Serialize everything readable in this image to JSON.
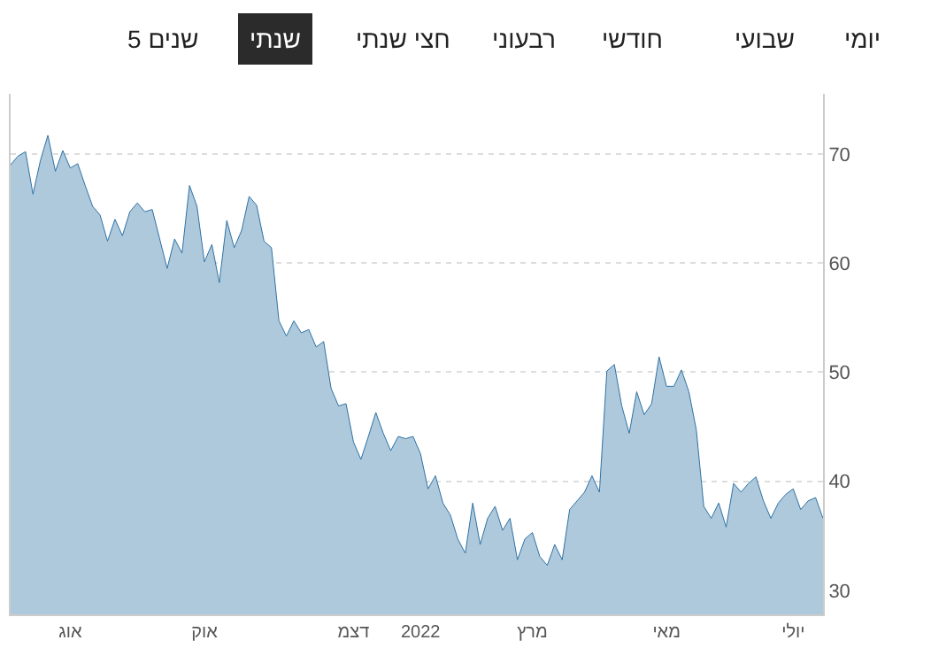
{
  "chart_data": {
    "type": "area",
    "annotations": [
      "יומי",
      "שבועי",
      "חודשי",
      "רבעוני",
      "חצי שנתי",
      "שנתי",
      "5 שנים"
    ],
    "categories": [
      null,
      null,
      null,
      null,
      null,
      null,
      null,
      null,
      "אוג",
      null,
      null,
      null,
      null,
      null,
      null,
      null,
      null,
      null,
      null,
      null,
      null,
      null,
      null,
      null,
      null,
      null,
      "אוק",
      null,
      null,
      null,
      null,
      null,
      null,
      null,
      null,
      null,
      null,
      null,
      null,
      null,
      null,
      null,
      null,
      null,
      null,
      null,
      "דצמ",
      null,
      null,
      null,
      null,
      null,
      null,
      null,
      null,
      "2022",
      null,
      null,
      null,
      null,
      null,
      null,
      null,
      null,
      null,
      null,
      null,
      null,
      null,
      null,
      "מרץ",
      null,
      null,
      null,
      null,
      null,
      null,
      null,
      null,
      null,
      null,
      null,
      null,
      null,
      null,
      null,
      null,
      null,
      "מאי",
      null,
      null,
      null,
      null,
      null,
      null,
      null,
      null,
      null,
      null,
      null,
      null,
      null,
      null,
      null,
      null,
      "יולי",
      null,
      null,
      null,
      null
    ],
    "series": [
      {
        "color": "#2e72a4",
        "values": [
          69.0,
          69.8,
          70.2,
          66.3,
          69.4,
          71.7,
          68.4,
          70.3,
          68.7,
          69.1,
          67.1,
          65.2,
          64.4,
          62.0,
          64.0,
          62.5,
          64.7,
          65.5,
          64.7,
          64.9,
          62.2,
          59.5,
          62.2,
          60.9,
          67.1,
          65.2,
          60.1,
          61.7,
          58.2,
          63.9,
          61.4,
          63.0,
          66.1,
          65.3,
          62.0,
          61.4,
          54.7,
          53.3,
          54.7,
          53.6,
          53.9,
          52.3,
          52.8,
          48.5,
          46.9,
          47.1,
          43.6,
          42.0,
          44.1,
          46.3,
          44.4,
          42.8,
          44.1,
          43.9,
          44.1,
          42.5,
          39.3,
          40.5,
          38.0,
          36.9,
          34.7,
          33.4,
          38.0,
          34.2,
          36.6,
          37.7,
          35.5,
          36.6,
          32.8,
          34.7,
          35.3,
          33.1,
          32.3,
          34.2,
          32.8,
          37.4,
          38.2,
          39.0,
          40.5,
          39.0,
          50.1,
          50.7,
          46.9,
          44.4,
          48.2,
          46.1,
          47.1,
          51.4,
          48.7,
          48.7,
          50.2,
          48.2,
          44.7,
          37.7,
          36.6,
          38.0,
          35.8,
          39.8,
          39.0,
          39.8,
          40.4,
          38.2,
          36.6,
          38.0,
          38.8,
          39.3,
          37.4,
          38.2,
          38.5,
          36.6
        ]
      }
    ],
    "ylim": [
      27.8,
      75.5
    ],
    "yticks": [
      30,
      40,
      50,
      60,
      70
    ],
    "grid": "y"
  }
}
